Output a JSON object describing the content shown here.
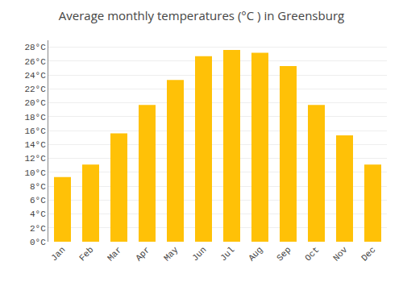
{
  "chart_data": {
    "type": "bar",
    "title": "Average monthly temperatures (°C ) in Greensburg",
    "categories": [
      "Jan",
      "Feb",
      "Mar",
      "Apr",
      "May",
      "Jun",
      "Jul",
      "Aug",
      "Sep",
      "Oct",
      "Nov",
      "Dec"
    ],
    "values": [
      9.3,
      11.1,
      15.6,
      19.7,
      23.3,
      26.7,
      27.6,
      27.2,
      25.3,
      19.7,
      15.3,
      11.1
    ],
    "color": "#FFC107",
    "ylim": [
      0,
      29
    ],
    "yticks": [
      {
        "value": 0,
        "label": "0°C"
      },
      {
        "value": 2,
        "label": "2°C"
      },
      {
        "value": 4,
        "label": "4°C"
      },
      {
        "value": 6,
        "label": "6°C"
      },
      {
        "value": 8,
        "label": "8°C"
      },
      {
        "value": 10,
        "label": "10°C"
      },
      {
        "value": 12,
        "label": "12°C"
      },
      {
        "value": 14,
        "label": "14°C"
      },
      {
        "value": 16,
        "label": "16°C"
      },
      {
        "value": 18,
        "label": "18°C"
      },
      {
        "value": 20,
        "label": "20°C"
      },
      {
        "value": 22,
        "label": "22°C"
      },
      {
        "value": 24,
        "label": "24°C"
      },
      {
        "value": 26,
        "label": "26°C"
      },
      {
        "value": 28,
        "label": "28°C"
      }
    ],
    "grid": true
  }
}
